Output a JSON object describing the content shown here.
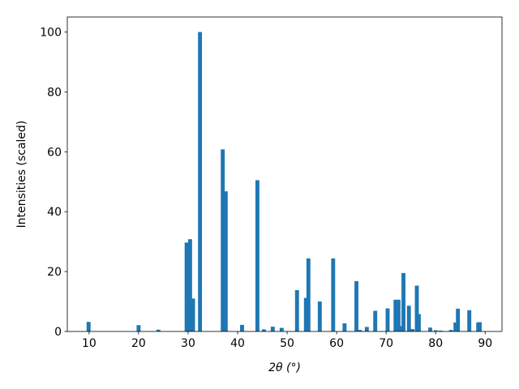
{
  "chart_data": {
    "type": "bar",
    "xlabel": "2θ (°)",
    "ylabel": "Intensities (scaled)",
    "x": [
      9.9,
      20.0,
      24.0,
      29.7,
      30.4,
      31.0,
      32.4,
      37.0,
      37.6,
      40.9,
      44.0,
      45.3,
      47.1,
      48.9,
      52.0,
      53.8,
      54.3,
      56.6,
      59.3,
      61.6,
      64.0,
      64.7,
      66.1,
      67.8,
      70.3,
      71.9,
      72.5,
      73.0,
      73.5,
      74.6,
      75.3,
      76.2,
      76.6,
      78.9,
      80.0,
      81.0,
      83.1,
      84.0,
      84.5,
      86.8,
      88.6,
      88.9
    ],
    "values": [
      3.2,
      2.1,
      0.6,
      29.7,
      30.8,
      11,
      100,
      60.8,
      46.8,
      2.2,
      50.5,
      0.7,
      1.6,
      1.2,
      13.8,
      11.2,
      24.4,
      10,
      24.4,
      2.7,
      16.8,
      0.5,
      1.5,
      6.9,
      7.7,
      10.6,
      10.6,
      1.8,
      19.5,
      8.6,
      0.8,
      15.3,
      5.8,
      1.3,
      0.4,
      0.3,
      0.5,
      3.0,
      7.6,
      7.1,
      3.0,
      3.1
    ],
    "bar_width": 0.8,
    "color": "#1f77b4",
    "xlim": [
      5.6,
      93.4
    ],
    "xticks": [
      10,
      20,
      30,
      40,
      50,
      60,
      70,
      80,
      90
    ],
    "ylim": [
      0,
      105
    ],
    "yticks": [
      0,
      20,
      40,
      60,
      80,
      100
    ],
    "grid": false
  }
}
